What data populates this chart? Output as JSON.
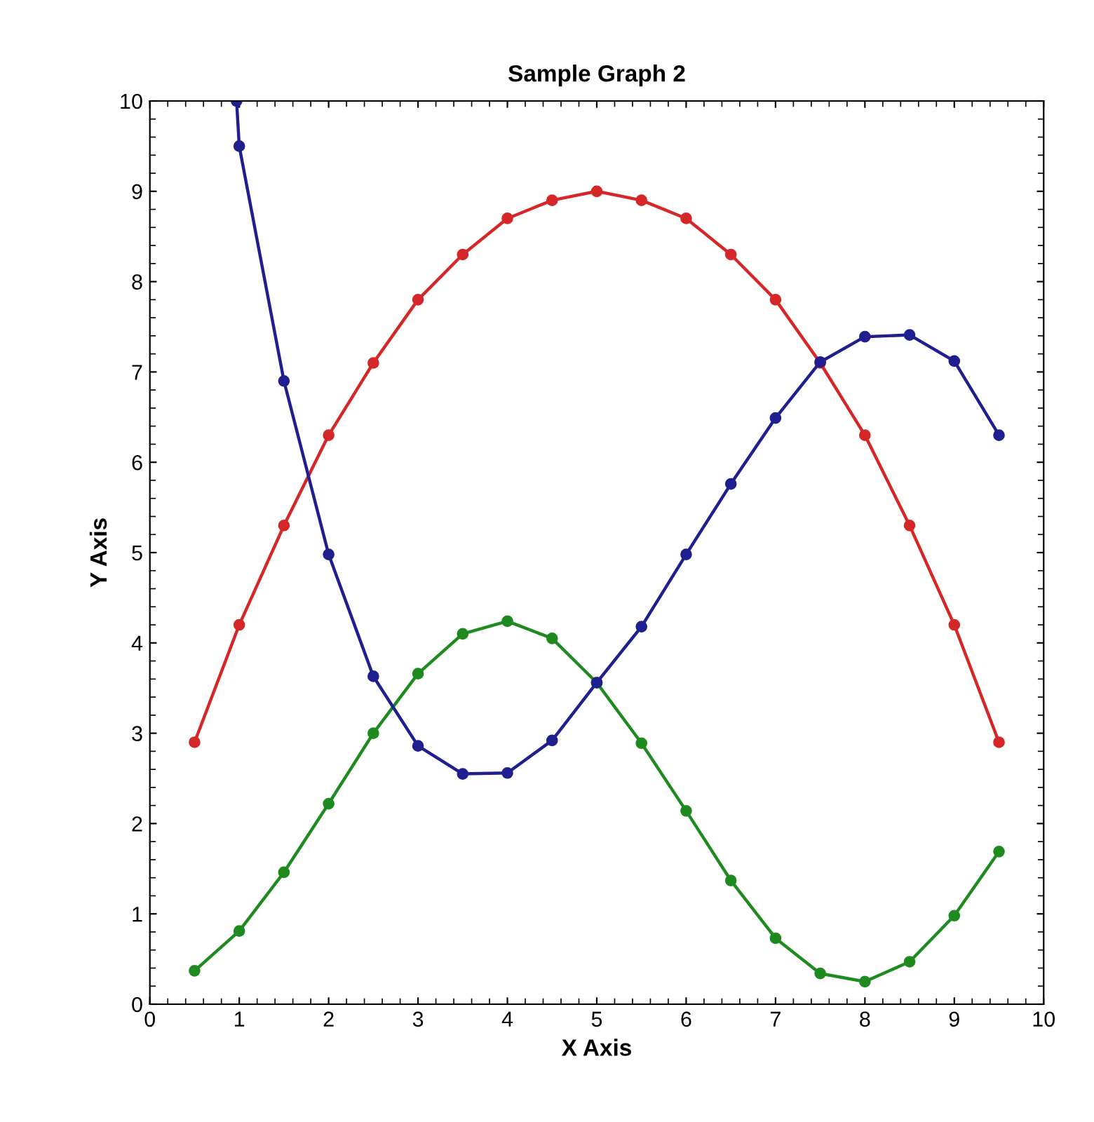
{
  "chart_data": {
    "type": "line",
    "title": "Sample Graph 2",
    "xlabel": "X Axis",
    "ylabel": "Y Axis",
    "x": [
      0.5,
      1,
      1.5,
      2,
      2.5,
      3,
      3.5,
      4,
      4.5,
      5,
      5.5,
      6,
      6.5,
      7,
      7.5,
      8,
      8.5,
      9,
      9.5
    ],
    "series": [
      {
        "color": "#d62728",
        "values": [
          2.9,
          4.2,
          5.3,
          6.3,
          7.1,
          7.8,
          8.3,
          8.7,
          8.9,
          9.0,
          8.9,
          8.7,
          8.3,
          7.8,
          7.1,
          6.3,
          5.3,
          4.2,
          2.9
        ]
      },
      {
        "color": "#1f8a1f",
        "values": [
          0.37,
          0.81,
          1.46,
          2.22,
          3.0,
          3.66,
          4.1,
          4.24,
          4.05,
          3.56,
          2.89,
          2.14,
          1.37,
          0.73,
          0.34,
          0.25,
          0.47,
          0.98,
          1.69
        ]
      },
      {
        "color": "#1f1f8f",
        "x": [
          0.97,
          1,
          1.5,
          2,
          2.5,
          3,
          3.5,
          4,
          4.5,
          5,
          5.5,
          6,
          6.5,
          7,
          7.5,
          8,
          8.5,
          9,
          9.5
        ],
        "values": [
          10.0,
          9.5,
          6.9,
          4.98,
          3.63,
          2.86,
          2.55,
          2.56,
          2.92,
          3.56,
          4.18,
          4.98,
          5.76,
          6.49,
          7.11,
          7.39,
          7.41,
          7.12,
          6.3
        ]
      }
    ],
    "xlim": [
      0,
      10
    ],
    "ylim": [
      0,
      10
    ],
    "xticks": [
      0,
      1,
      2,
      3,
      4,
      5,
      6,
      7,
      8,
      9,
      10
    ],
    "yticks": [
      0,
      1,
      2,
      3,
      4,
      5,
      6,
      7,
      8,
      9,
      10
    ],
    "marker": "circle",
    "line_style": "solid",
    "grid": false,
    "legend": false
  }
}
